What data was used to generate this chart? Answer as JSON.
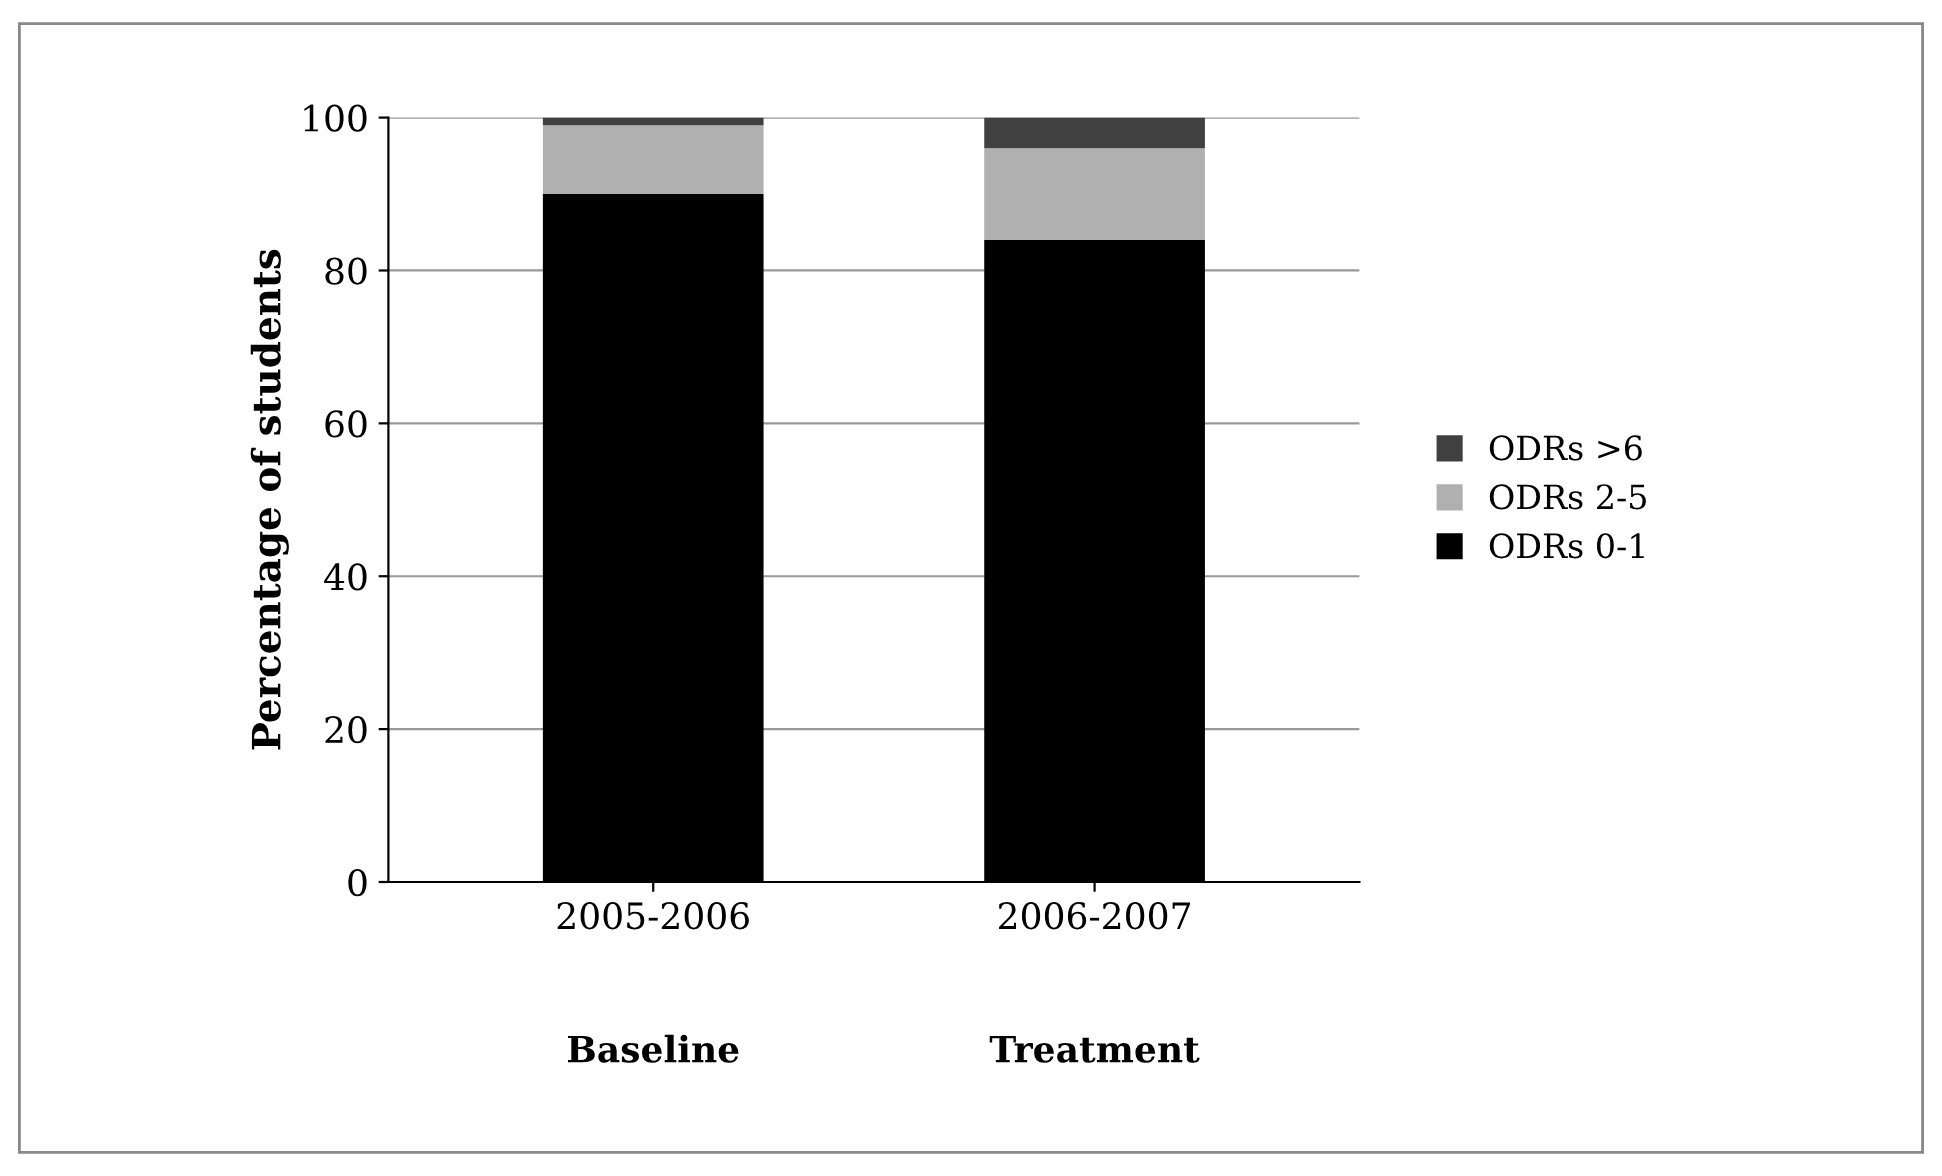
{
  "chart_data": {
    "type": "bar",
    "stacked": true,
    "ylabel": "Percentage of students",
    "categories": [
      "2005-2006",
      "2006-2007"
    ],
    "series": [
      {
        "name": "ODRs 0-1",
        "color": "#000000",
        "values": [
          90,
          84
        ]
      },
      {
        "name": "ODRs 2-5",
        "color": "#b0b0b0",
        "values": [
          9,
          12
        ]
      },
      {
        "name": "ODRs >6",
        "color": "#404040",
        "values": [
          1,
          4
        ]
      }
    ],
    "annotations": [
      "Baseline",
      "Treatment"
    ],
    "ylim": [
      0,
      100
    ],
    "yticks": [
      0,
      20,
      40,
      60,
      80,
      100
    ],
    "grid": "y",
    "legend": "right"
  }
}
